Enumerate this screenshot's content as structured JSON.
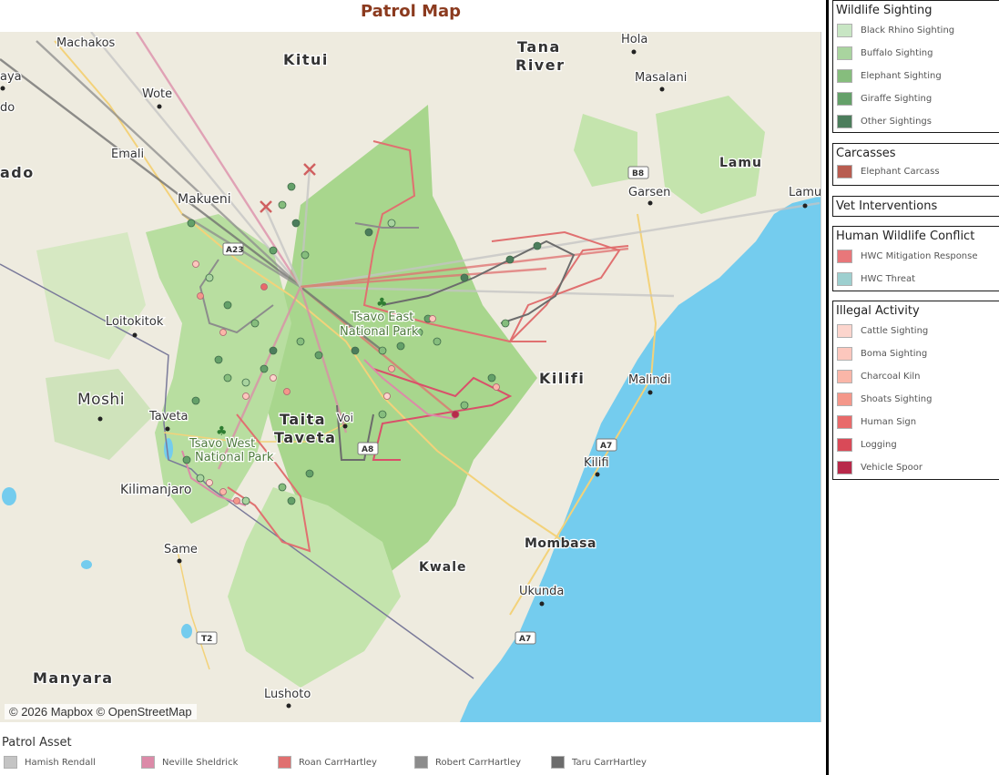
{
  "map": {
    "title": "Patrol Map",
    "attribution": "© 2026 Mapbox © OpenStreetMap",
    "place_labels": {
      "kitui": "Kitui",
      "tana": "Tana",
      "river": "River",
      "hola": "Hola",
      "masalani": "Masalani",
      "machakos": "Machakos",
      "wote": "Wote",
      "emali": "Emali",
      "makueni": "Makueni",
      "lamu": "Lamu",
      "lamu_town": "Lamu",
      "garsen": "Garsen",
      "b8": "B8",
      "ado": "ado",
      "aya": "aya",
      "do": "do",
      "loitokitok": "Loitokitok",
      "tsavo_east_1": "Tsavo East",
      "tsavo_east_2": "National Park",
      "moshi": "Moshi",
      "taveta": "Taveta",
      "taita": "Taita",
      "taveta_county": "Taveta",
      "voi": "Voi",
      "a8": "A8",
      "kilifi_county": "Kilifi",
      "malindi": "Malindi",
      "tsavo_west_1": "Tsavo West",
      "tsavo_west_2": "National Park",
      "kilimanjaro": "Kilimanjaro",
      "a7_north": "A7",
      "kilifi_town": "Kilifi",
      "same": "Same",
      "mombasa": "Mombasa",
      "kwale": "Kwale",
      "ukunda": "Ukunda",
      "t2": "T2",
      "a7_south": "A7",
      "manyara": "Manyara",
      "lushoto": "Lushoto",
      "road_a23": "A23"
    }
  },
  "legends": {
    "wildlife": {
      "title": "Wildlife Sighting",
      "items": [
        {
          "label": "Black Rhino Sighting",
          "color": "#c8e6c4"
        },
        {
          "label": "Buffalo Sighting",
          "color": "#a9d49f"
        },
        {
          "label": "Elephant Sighting",
          "color": "#86bd7d"
        },
        {
          "label": "Giraffe Sighting",
          "color": "#64a069"
        },
        {
          "label": "Other Sightings",
          "color": "#4c7d5c"
        }
      ]
    },
    "carcasses": {
      "title": "Carcasses",
      "items": [
        {
          "label": "Elephant Carcass",
          "color": "#b85c50"
        }
      ]
    },
    "vet": {
      "title": "Vet Interventions"
    },
    "hwc": {
      "title": "Human Wildlife Conflict",
      "items": [
        {
          "label": "HWC Mitigation Response",
          "color": "#e8777a"
        },
        {
          "label": "HWC Threat",
          "color": "#9dcfcf"
        }
      ]
    },
    "illegal": {
      "title": "Illegal Activity",
      "items": [
        {
          "label": "Cattle Sighting",
          "color": "#fcd5cd"
        },
        {
          "label": "Boma Sighting",
          "color": "#fcc7bd"
        },
        {
          "label": "Charcoal Kiln",
          "color": "#fab6a8"
        },
        {
          "label": "Shoats Sighting",
          "color": "#f4978a"
        },
        {
          "label": "Human Sign",
          "color": "#e86a6a"
        },
        {
          "label": "Logging",
          "color": "#d94a58"
        },
        {
          "label": "Vehicle Spoor",
          "color": "#b8294a"
        }
      ]
    },
    "assets": {
      "title": "Patrol Asset",
      "items": [
        {
          "label": "Hamish Rendall",
          "color": "#c4c4c4"
        },
        {
          "label": "Neville Sheldrick",
          "color": "#dc8aa8"
        },
        {
          "label": "Roan CarrHartley",
          "color": "#e07070"
        },
        {
          "label": "Robert CarrHartley",
          "color": "#8c8c8c"
        },
        {
          "label": "Taru CarrHartley",
          "color": "#6c6c6c"
        }
      ]
    }
  }
}
